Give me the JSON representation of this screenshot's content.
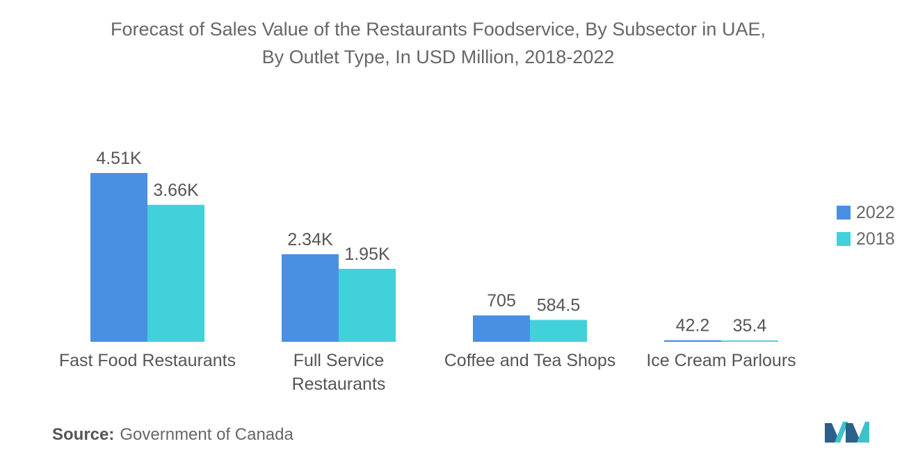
{
  "title_line1": "Forecast of Sales Value of the Restaurants Foodservice, By Subsector in UAE,",
  "title_line2": "By Outlet Type, In USD Million, 2018-2022",
  "source_label": "Source:",
  "source_text": "Government of Canada",
  "colors": {
    "series_2022": "#4a90e2",
    "series_2018": "#40d1da",
    "text": "#555555"
  },
  "legend": [
    {
      "label": "2022",
      "color": "#4a90e2"
    },
    {
      "label": "2018",
      "color": "#40d1da"
    }
  ],
  "chart_data": {
    "type": "bar",
    "title": "Forecast of Sales Value of the Restaurants Foodservice, By Subsector in UAE, By Outlet Type, In USD Million, 2018-2022",
    "categories": [
      "Fast Food Restaurants",
      "Full Service Restaurants",
      "Coffee and Tea Shops",
      "Ice Cream Parlours"
    ],
    "category_lines": [
      [
        "Fast Food Restaurants"
      ],
      [
        "Full Service",
        "Restaurants"
      ],
      [
        "Coffee and Tea Shops"
      ],
      [
        "Ice Cream Parlours"
      ]
    ],
    "series": [
      {
        "name": "2022",
        "values": [
          4510,
          2340,
          705,
          42.2
        ],
        "labels": [
          "4.51K",
          "2.34K",
          "705",
          "42.2"
        ]
      },
      {
        "name": "2018",
        "values": [
          3660,
          1950,
          584.5,
          35.4
        ],
        "labels": [
          "3.66K",
          "1.95K",
          "584.5",
          "35.4"
        ]
      }
    ],
    "xlabel": "",
    "ylabel": "",
    "ylim": [
      0,
      4510
    ],
    "grid": false,
    "legend_position": "right"
  }
}
